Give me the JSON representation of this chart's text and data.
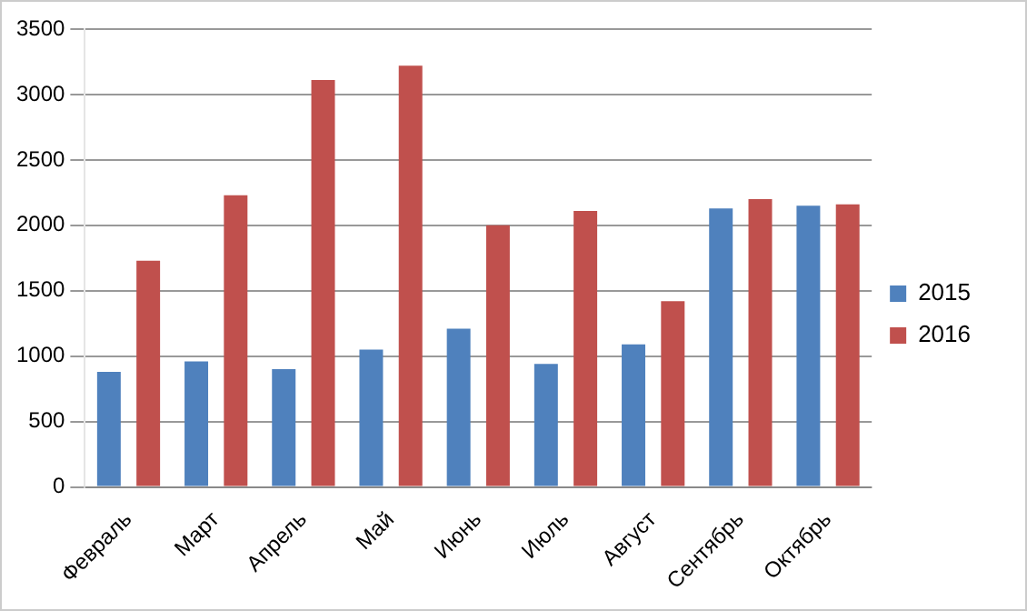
{
  "chart_data": {
    "type": "bar",
    "categories": [
      "Февраль",
      "Март",
      "Апрель",
      "Май",
      "Июнь",
      "Июль",
      "Август",
      "Сентябрь",
      "Октябрь"
    ],
    "series": [
      {
        "name": "2015",
        "color": "#4f81bd",
        "values": [
          880,
          960,
          900,
          1050,
          1210,
          940,
          1090,
          2130,
          2150
        ]
      },
      {
        "name": "2016",
        "color": "#c0504d",
        "values": [
          1730,
          2230,
          3110,
          3220,
          2000,
          2110,
          1420,
          2200,
          2160
        ]
      }
    ],
    "ylim": [
      0,
      3500
    ],
    "yticks": [
      0,
      500,
      1000,
      1500,
      2000,
      2500,
      3000,
      3500
    ],
    "grid": "y",
    "legend": "right"
  }
}
